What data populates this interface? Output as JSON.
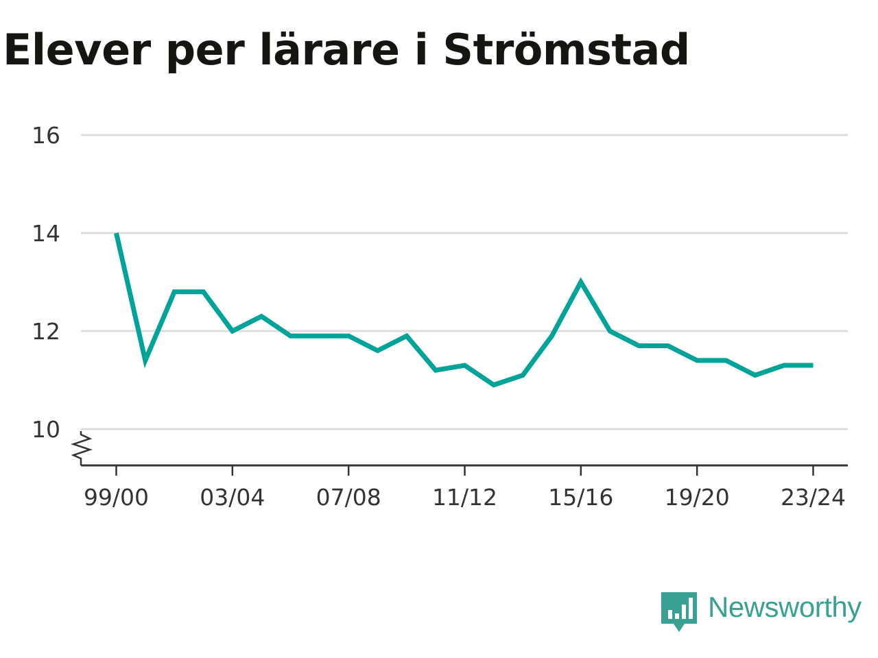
{
  "chart_data": {
    "type": "line",
    "title": "Elever per lärare i Strömstad",
    "xlabel": "",
    "ylabel": "",
    "x": [
      "99/00",
      "00/01",
      "01/02",
      "02/03",
      "03/04",
      "04/05",
      "05/06",
      "06/07",
      "07/08",
      "08/09",
      "09/10",
      "10/11",
      "11/12",
      "12/13",
      "13/14",
      "14/15",
      "15/16",
      "16/17",
      "17/18",
      "18/19",
      "19/20",
      "20/21",
      "21/22",
      "22/23",
      "23/24"
    ],
    "x_tick_labels": [
      "99/00",
      "03/04",
      "07/08",
      "11/12",
      "15/16",
      "19/20",
      "23/24"
    ],
    "series": [
      {
        "values": [
          14.0,
          11.4,
          12.8,
          12.8,
          12.0,
          12.3,
          11.9,
          11.9,
          11.9,
          11.6,
          11.9,
          11.2,
          11.3,
          10.9,
          11.1,
          11.9,
          13.0,
          12.0,
          11.7,
          11.7,
          11.4,
          11.4,
          11.1,
          11.3,
          11.3
        ],
        "color": "#00a398"
      }
    ],
    "y_ticks": [
      10,
      12,
      14,
      16
    ],
    "ylim": [
      10,
      16
    ],
    "y_axis_break": true,
    "grid": true,
    "legend": "none"
  },
  "brand": {
    "name": "Newsworthy",
    "color": "#3aa091",
    "icon": "bar-chart-speech-bubble-icon"
  }
}
